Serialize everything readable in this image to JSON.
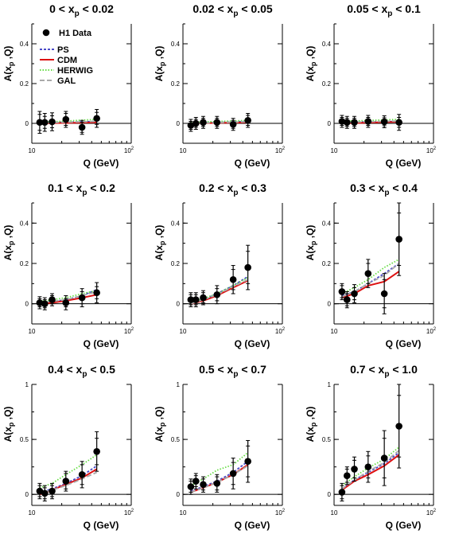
{
  "legend": {
    "entries": [
      {
        "label": "H1 Data",
        "kind": "marker",
        "color": "#000000"
      },
      {
        "label": "PS",
        "kind": "line",
        "color": "#4a4ac8",
        "dash": "3,2"
      },
      {
        "label": "CDM",
        "kind": "line",
        "color": "#dd1111",
        "dash": ""
      },
      {
        "label": "HERWIG",
        "kind": "line",
        "color": "#66dd44",
        "dash": "1.5,2"
      },
      {
        "label": "GAL",
        "kind": "line",
        "color": "#aaaaaa",
        "dash": "6,3"
      }
    ]
  },
  "chart_data": [
    {
      "type": "scatter",
      "title_parts": {
        "left": "0 < x",
        "sub": "p",
        "right": " < 0.02"
      },
      "xlabel": "Q (GeV)",
      "ylabel": "A(x_p ,Q)",
      "xscale": "log",
      "xlim": [
        10,
        100
      ],
      "ylim": [
        -0.1,
        0.5
      ],
      "xtick_labels": [
        "10",
        "10^2"
      ],
      "yticks": [
        0,
        0.2,
        0.4
      ],
      "ytick_labels": [
        "0",
        "0.2",
        "0.4"
      ],
      "series": [
        {
          "name": "H1 Data",
          "x": [
            12,
            13.5,
            16,
            22,
            32,
            45
          ],
          "y": [
            0.005,
            0.005,
            0.008,
            0.02,
            -0.02,
            0.025
          ],
          "err_stat": [
            0.04,
            0.03,
            0.03,
            0.03,
            0.025,
            0.03
          ],
          "err_tot": [
            0.055,
            0.045,
            0.045,
            0.04,
            0.035,
            0.045
          ]
        },
        {
          "name": "PS",
          "x": [
            12,
            45
          ],
          "y": [
            0.003,
            0.01
          ]
        },
        {
          "name": "CDM",
          "x": [
            12,
            45
          ],
          "y": [
            0.0,
            0.005
          ]
        },
        {
          "name": "HERWIG",
          "x": [
            12,
            45
          ],
          "y": [
            0.005,
            0.02
          ]
        },
        {
          "name": "GAL",
          "x": [
            12,
            45
          ],
          "y": [
            0.002,
            0.01
          ]
        }
      ]
    },
    {
      "type": "scatter",
      "title_parts": {
        "left": "0.02 < x",
        "sub": "p",
        "right": " < 0.05"
      },
      "xlabel": "Q (GeV)",
      "ylabel": "A(x_p ,Q)",
      "xscale": "log",
      "xlim": [
        10,
        100
      ],
      "ylim": [
        -0.1,
        0.5
      ],
      "xtick_labels": [
        "10",
        "10^2"
      ],
      "yticks": [
        0,
        0.2,
        0.4
      ],
      "ytick_labels": [
        "0",
        "0.2",
        "0.4"
      ],
      "series": [
        {
          "name": "H1 Data",
          "x": [
            12,
            13.5,
            16,
            22,
            32,
            45
          ],
          "y": [
            -0.01,
            0.0,
            0.005,
            0.005,
            -0.005,
            0.015
          ],
          "err_stat": [
            0.02,
            0.02,
            0.02,
            0.02,
            0.02,
            0.025
          ],
          "err_tot": [
            0.03,
            0.03,
            0.03,
            0.03,
            0.03,
            0.035
          ]
        },
        {
          "name": "PS",
          "x": [
            12,
            45
          ],
          "y": [
            0.0,
            0.01
          ]
        },
        {
          "name": "CDM",
          "x": [
            12,
            45
          ],
          "y": [
            0.0,
            0.005
          ]
        },
        {
          "name": "HERWIG",
          "x": [
            12,
            45
          ],
          "y": [
            0.005,
            0.015
          ]
        },
        {
          "name": "GAL",
          "x": [
            12,
            45
          ],
          "y": [
            0.0,
            0.008
          ]
        }
      ]
    },
    {
      "type": "scatter",
      "title_parts": {
        "left": "0.05 < x",
        "sub": "p",
        "right": " < 0.1"
      },
      "xlabel": "Q (GeV)",
      "ylabel": "A(x_p ,Q)",
      "xscale": "log",
      "xlim": [
        10,
        100
      ],
      "ylim": [
        -0.1,
        0.5
      ],
      "xtick_labels": [
        "10",
        "10^2"
      ],
      "yticks": [
        0,
        0.2,
        0.4
      ],
      "ytick_labels": [
        "0",
        "0.2",
        "0.4"
      ],
      "series": [
        {
          "name": "H1 Data",
          "x": [
            12,
            13.5,
            16,
            22,
            32,
            45
          ],
          "y": [
            0.01,
            0.005,
            0.005,
            0.01,
            0.008,
            0.005
          ],
          "err_stat": [
            0.02,
            0.02,
            0.02,
            0.02,
            0.02,
            0.025
          ],
          "err_tot": [
            0.03,
            0.03,
            0.03,
            0.03,
            0.03,
            0.04
          ]
        },
        {
          "name": "PS",
          "x": [
            12,
            45
          ],
          "y": [
            0.005,
            0.01
          ]
        },
        {
          "name": "CDM",
          "x": [
            12,
            45
          ],
          "y": [
            0.0,
            0.008
          ]
        },
        {
          "name": "HERWIG",
          "x": [
            12,
            45
          ],
          "y": [
            0.01,
            0.02
          ]
        },
        {
          "name": "GAL",
          "x": [
            12,
            45
          ],
          "y": [
            0.005,
            0.012
          ]
        }
      ]
    },
    {
      "type": "scatter",
      "title_parts": {
        "left": "0.1 < x",
        "sub": "p",
        "right": " < 0.2"
      },
      "xlabel": "Q (GeV)",
      "ylabel": "A(x_p ,Q)",
      "xscale": "log",
      "xlim": [
        10,
        100
      ],
      "ylim": [
        -0.1,
        0.5
      ],
      "xtick_labels": [
        "10",
        "10^2"
      ],
      "yticks": [
        0,
        0.2,
        0.4
      ],
      "ytick_labels": [
        "0",
        "0.2",
        "0.4"
      ],
      "series": [
        {
          "name": "H1 Data",
          "x": [
            12,
            13.5,
            16,
            22,
            32,
            45
          ],
          "y": [
            0.005,
            0.0,
            0.02,
            0.005,
            0.03,
            0.055
          ],
          "err_stat": [
            0.02,
            0.02,
            0.02,
            0.02,
            0.03,
            0.03
          ],
          "err_tot": [
            0.03,
            0.03,
            0.03,
            0.035,
            0.045,
            0.05
          ]
        },
        {
          "name": "PS",
          "x": [
            12,
            16,
            22,
            32,
            45
          ],
          "y": [
            0.0,
            0.01,
            0.02,
            0.04,
            0.07
          ]
        },
        {
          "name": "CDM",
          "x": [
            12,
            16,
            22,
            32,
            45
          ],
          "y": [
            0.0,
            0.005,
            0.015,
            0.03,
            0.045
          ]
        },
        {
          "name": "HERWIG",
          "x": [
            12,
            16,
            22,
            32,
            45
          ],
          "y": [
            0.01,
            0.02,
            0.03,
            0.05,
            0.065
          ]
        },
        {
          "name": "GAL",
          "x": [
            12,
            16,
            22,
            32,
            45
          ],
          "y": [
            0.005,
            0.012,
            0.02,
            0.04,
            0.06
          ]
        }
      ]
    },
    {
      "type": "scatter",
      "title_parts": {
        "left": "0.2 < x",
        "sub": "p",
        "right": " < 0.3"
      },
      "xlabel": "Q (GeV)",
      "ylabel": "A(x_p ,Q)",
      "xscale": "log",
      "xlim": [
        10,
        100
      ],
      "ylim": [
        -0.1,
        0.5
      ],
      "xtick_labels": [
        "10",
        "10^2"
      ],
      "yticks": [
        0,
        0.2,
        0.4
      ],
      "ytick_labels": [
        "0",
        "0.2",
        "0.4"
      ],
      "series": [
        {
          "name": "H1 Data",
          "x": [
            12,
            13.5,
            16,
            22,
            32,
            45
          ],
          "y": [
            0.02,
            0.02,
            0.03,
            0.045,
            0.12,
            0.18
          ],
          "err_stat": [
            0.025,
            0.025,
            0.025,
            0.03,
            0.05,
            0.08
          ],
          "err_tot": [
            0.035,
            0.035,
            0.035,
            0.045,
            0.07,
            0.11
          ]
        },
        {
          "name": "PS",
          "x": [
            12,
            16,
            22,
            32,
            45
          ],
          "y": [
            0.0,
            0.02,
            0.05,
            0.09,
            0.135
          ]
        },
        {
          "name": "CDM",
          "x": [
            12,
            16,
            22,
            32,
            45
          ],
          "y": [
            0.0,
            0.015,
            0.04,
            0.08,
            0.115
          ]
        },
        {
          "name": "HERWIG",
          "x": [
            12,
            16,
            22,
            32,
            45
          ],
          "y": [
            0.005,
            0.025,
            0.05,
            0.09,
            0.13
          ]
        },
        {
          "name": "GAL",
          "x": [
            12,
            16,
            22,
            32,
            45
          ],
          "y": [
            0.0,
            0.02,
            0.045,
            0.085,
            0.12
          ]
        }
      ]
    },
    {
      "type": "scatter",
      "title_parts": {
        "left": "0.3 < x",
        "sub": "p",
        "right": " < 0.4"
      },
      "xlabel": "Q (GeV)",
      "ylabel": "A(x_p ,Q)",
      "xscale": "log",
      "xlim": [
        10,
        100
      ],
      "ylim": [
        -0.1,
        0.5
      ],
      "xtick_labels": [
        "10",
        "10^2"
      ],
      "yticks": [
        0,
        0.2,
        0.4
      ],
      "ytick_labels": [
        "0",
        "0.2",
        "0.4"
      ],
      "series": [
        {
          "name": "H1 Data",
          "x": [
            12,
            13.5,
            16,
            22,
            32,
            45
          ],
          "y": [
            0.06,
            0.02,
            0.05,
            0.15,
            0.05,
            0.32
          ],
          "err_stat": [
            0.03,
            0.03,
            0.03,
            0.05,
            0.07,
            0.13
          ],
          "err_tot": [
            0.04,
            0.04,
            0.045,
            0.07,
            0.1,
            0.18
          ]
        },
        {
          "name": "PS",
          "x": [
            12,
            16,
            22,
            32,
            45
          ],
          "y": [
            0.04,
            0.06,
            0.1,
            0.15,
            0.2
          ]
        },
        {
          "name": "CDM",
          "x": [
            12,
            16,
            22,
            32,
            45
          ],
          "y": [
            0.03,
            0.05,
            0.09,
            0.11,
            0.16
          ]
        },
        {
          "name": "HERWIG",
          "x": [
            12,
            16,
            22,
            32,
            45
          ],
          "y": [
            0.05,
            0.08,
            0.12,
            0.18,
            0.22
          ]
        },
        {
          "name": "GAL",
          "x": [
            12,
            16,
            22,
            32,
            45
          ],
          "y": [
            0.035,
            0.06,
            0.1,
            0.14,
            0.2
          ]
        }
      ]
    },
    {
      "type": "scatter",
      "title_parts": {
        "left": "0.4 < x",
        "sub": "p",
        "right": " < 0.5"
      },
      "xlabel": "Q (GeV)",
      "ylabel": "A(x_p ,Q)",
      "xscale": "log",
      "xlim": [
        10,
        100
      ],
      "ylim": [
        -0.1,
        1.0
      ],
      "xtick_labels": [
        "10",
        "10^2"
      ],
      "yticks": [
        0,
        0.5,
        1
      ],
      "ytick_labels": [
        "0",
        "0.5",
        "1"
      ],
      "series": [
        {
          "name": "H1 Data",
          "x": [
            12,
            13.5,
            16,
            22,
            32,
            45
          ],
          "y": [
            0.03,
            0.01,
            0.03,
            0.12,
            0.18,
            0.39
          ],
          "err_stat": [
            0.05,
            0.05,
            0.05,
            0.07,
            0.09,
            0.12
          ],
          "err_tot": [
            0.07,
            0.07,
            0.07,
            0.09,
            0.12,
            0.18
          ]
        },
        {
          "name": "PS",
          "x": [
            12,
            16,
            22,
            32,
            45
          ],
          "y": [
            0.02,
            0.05,
            0.1,
            0.17,
            0.26
          ]
        },
        {
          "name": "CDM",
          "x": [
            12,
            16,
            22,
            32,
            45
          ],
          "y": [
            0.0,
            0.04,
            0.09,
            0.15,
            0.23
          ]
        },
        {
          "name": "HERWIG",
          "x": [
            12,
            16,
            22,
            32,
            45
          ],
          "y": [
            0.06,
            0.1,
            0.18,
            0.27,
            0.36
          ]
        },
        {
          "name": "GAL",
          "x": [
            12,
            16,
            22,
            32,
            45
          ],
          "y": [
            0.01,
            0.04,
            0.08,
            0.14,
            0.2
          ]
        }
      ]
    },
    {
      "type": "scatter",
      "title_parts": {
        "left": "0.5 < x",
        "sub": "p",
        "right": " < 0.7"
      },
      "xlabel": "Q (GeV)",
      "ylabel": "A(x_p ,Q)",
      "xscale": "log",
      "xlim": [
        10,
        100
      ],
      "ylim": [
        -0.1,
        1.0
      ],
      "xtick_labels": [
        "10",
        "10^2"
      ],
      "yticks": [
        0,
        0.5,
        1
      ],
      "ytick_labels": [
        "0",
        "0.5",
        "1"
      ],
      "series": [
        {
          "name": "H1 Data",
          "x": [
            12,
            13.5,
            16,
            22,
            32,
            45
          ],
          "y": [
            0.07,
            0.12,
            0.09,
            0.1,
            0.19,
            0.3
          ],
          "err_stat": [
            0.05,
            0.05,
            0.05,
            0.06,
            0.1,
            0.14
          ],
          "err_tot": [
            0.07,
            0.07,
            0.07,
            0.08,
            0.14,
            0.19
          ]
        },
        {
          "name": "PS",
          "x": [
            12,
            16,
            22,
            32,
            45
          ],
          "y": [
            0.03,
            0.07,
            0.12,
            0.2,
            0.3
          ]
        },
        {
          "name": "CDM",
          "x": [
            12,
            16,
            22,
            32,
            45
          ],
          "y": [
            0.02,
            0.06,
            0.11,
            0.18,
            0.27
          ]
        },
        {
          "name": "HERWIG",
          "x": [
            12,
            16,
            22,
            32,
            45
          ],
          "y": [
            0.08,
            0.14,
            0.22,
            0.27,
            0.38
          ]
        },
        {
          "name": "GAL",
          "x": [
            12,
            16,
            22,
            32,
            45
          ],
          "y": [
            0.02,
            0.06,
            0.11,
            0.18,
            0.26
          ]
        }
      ]
    },
    {
      "type": "scatter",
      "title_parts": {
        "left": "0.7 < x",
        "sub": "p",
        "right": " < 1.0"
      },
      "xlabel": "Q (GeV)",
      "ylabel": "A(x_p ,Q)",
      "xscale": "log",
      "xlim": [
        10,
        100
      ],
      "ylim": [
        -0.1,
        1.0
      ],
      "xtick_labels": [
        "10",
        "10^2"
      ],
      "yticks": [
        0,
        0.5,
        1
      ],
      "ytick_labels": [
        "0",
        "0.5",
        "1"
      ],
      "series": [
        {
          "name": "H1 Data",
          "x": [
            12,
            13.5,
            16,
            22,
            32,
            45
          ],
          "y": [
            0.02,
            0.17,
            0.23,
            0.25,
            0.33,
            0.62
          ],
          "err_stat": [
            0.06,
            0.06,
            0.08,
            0.1,
            0.18,
            0.28
          ],
          "err_tot": [
            0.08,
            0.08,
            0.11,
            0.14,
            0.25,
            0.38
          ]
        },
        {
          "name": "PS",
          "x": [
            12,
            16,
            22,
            32,
            45
          ],
          "y": [
            0.05,
            0.13,
            0.2,
            0.28,
            0.38
          ]
        },
        {
          "name": "CDM",
          "x": [
            12,
            16,
            22,
            32,
            45
          ],
          "y": [
            0.04,
            0.12,
            0.18,
            0.26,
            0.36
          ]
        },
        {
          "name": "HERWIG",
          "x": [
            12,
            16,
            22,
            32,
            45
          ],
          "y": [
            0.08,
            0.16,
            0.24,
            0.32,
            0.43
          ]
        },
        {
          "name": "GAL",
          "x": [
            12,
            16,
            22,
            32,
            45
          ],
          "y": [
            0.05,
            0.13,
            0.21,
            0.29,
            0.4
          ]
        }
      ]
    }
  ]
}
